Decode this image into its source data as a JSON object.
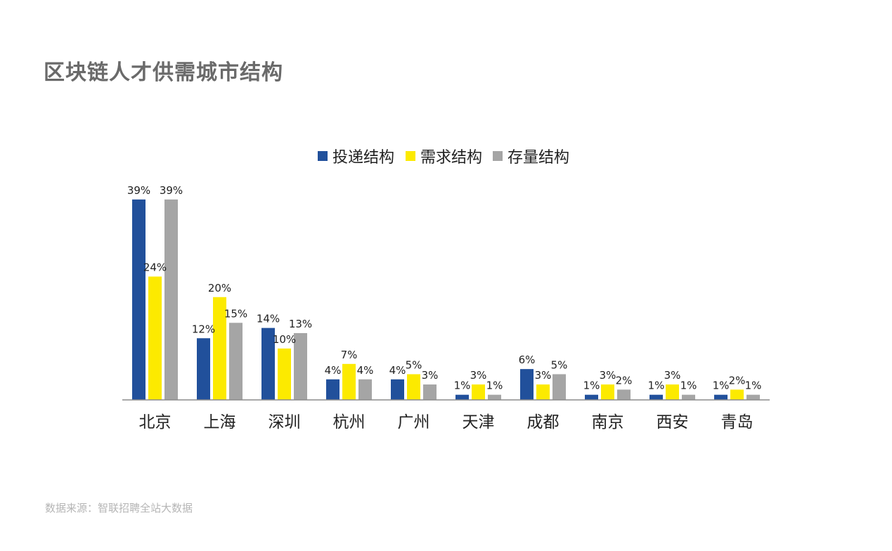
{
  "title": "区块链人才供需城市结构",
  "source": "数据来源：智联招聘全站大数据",
  "chart_data": {
    "type": "bar",
    "categories": [
      "北京",
      "上海",
      "深圳",
      "杭州",
      "广州",
      "天津",
      "成都",
      "南京",
      "西安",
      "青岛"
    ],
    "series": [
      {
        "name": "投递结构",
        "color": "#21509b",
        "values": [
          39,
          12,
          14,
          4,
          4,
          1,
          6,
          1,
          1,
          1
        ],
        "labels": [
          "39%",
          "12%",
          "14%",
          "4%",
          "4%",
          "1%",
          "6%",
          "1%",
          "1%",
          "1%"
        ]
      },
      {
        "name": "需求结构",
        "color": "#fcea00",
        "values": [
          24,
          20,
          10,
          7,
          5,
          3,
          3,
          3,
          3,
          2
        ],
        "labels": [
          "24%",
          "20%",
          "10%",
          "7%",
          "5%",
          "3%",
          "3%",
          "3%",
          "3%",
          "2%"
        ]
      },
      {
        "name": "存量结构",
        "color": "#a5a5a5",
        "values": [
          39,
          15,
          13,
          4,
          3,
          1,
          5,
          2,
          1,
          1
        ],
        "labels": [
          "39%",
          "15%",
          "13%",
          "4%",
          "3%",
          "1%",
          "5%",
          "2%",
          "1%",
          "1%"
        ]
      }
    ],
    "ylim": [
      0,
      40
    ],
    "legend_position": "top-center",
    "axis_color": "#8c8c8c",
    "grid": false
  }
}
